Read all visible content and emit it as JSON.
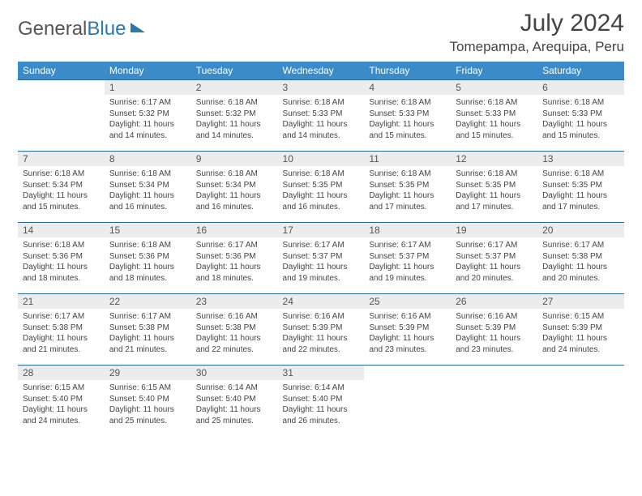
{
  "logo": {
    "text_gray": "General",
    "text_blue": "Blue"
  },
  "title": {
    "month": "July 2024",
    "location": "Tomepampa, Arequipa, Peru"
  },
  "colors": {
    "header_bg": "#3b8bc8",
    "header_text": "#ffffff",
    "row_border": "#2a6aa0",
    "daynum_bg": "#ececec",
    "text": "#444444",
    "logo_blue": "#2a7ab0"
  },
  "weekdays": [
    "Sunday",
    "Monday",
    "Tuesday",
    "Wednesday",
    "Thursday",
    "Friday",
    "Saturday"
  ],
  "weeks": [
    [
      {
        "n": "",
        "sunrise": "",
        "sunset": "",
        "daylight1": "",
        "daylight2": ""
      },
      {
        "n": "1",
        "sunrise": "Sunrise: 6:17 AM",
        "sunset": "Sunset: 5:32 PM",
        "daylight1": "Daylight: 11 hours",
        "daylight2": "and 14 minutes."
      },
      {
        "n": "2",
        "sunrise": "Sunrise: 6:18 AM",
        "sunset": "Sunset: 5:32 PM",
        "daylight1": "Daylight: 11 hours",
        "daylight2": "and 14 minutes."
      },
      {
        "n": "3",
        "sunrise": "Sunrise: 6:18 AM",
        "sunset": "Sunset: 5:33 PM",
        "daylight1": "Daylight: 11 hours",
        "daylight2": "and 14 minutes."
      },
      {
        "n": "4",
        "sunrise": "Sunrise: 6:18 AM",
        "sunset": "Sunset: 5:33 PM",
        "daylight1": "Daylight: 11 hours",
        "daylight2": "and 15 minutes."
      },
      {
        "n": "5",
        "sunrise": "Sunrise: 6:18 AM",
        "sunset": "Sunset: 5:33 PM",
        "daylight1": "Daylight: 11 hours",
        "daylight2": "and 15 minutes."
      },
      {
        "n": "6",
        "sunrise": "Sunrise: 6:18 AM",
        "sunset": "Sunset: 5:33 PM",
        "daylight1": "Daylight: 11 hours",
        "daylight2": "and 15 minutes."
      }
    ],
    [
      {
        "n": "7",
        "sunrise": "Sunrise: 6:18 AM",
        "sunset": "Sunset: 5:34 PM",
        "daylight1": "Daylight: 11 hours",
        "daylight2": "and 15 minutes."
      },
      {
        "n": "8",
        "sunrise": "Sunrise: 6:18 AM",
        "sunset": "Sunset: 5:34 PM",
        "daylight1": "Daylight: 11 hours",
        "daylight2": "and 16 minutes."
      },
      {
        "n": "9",
        "sunrise": "Sunrise: 6:18 AM",
        "sunset": "Sunset: 5:34 PM",
        "daylight1": "Daylight: 11 hours",
        "daylight2": "and 16 minutes."
      },
      {
        "n": "10",
        "sunrise": "Sunrise: 6:18 AM",
        "sunset": "Sunset: 5:35 PM",
        "daylight1": "Daylight: 11 hours",
        "daylight2": "and 16 minutes."
      },
      {
        "n": "11",
        "sunrise": "Sunrise: 6:18 AM",
        "sunset": "Sunset: 5:35 PM",
        "daylight1": "Daylight: 11 hours",
        "daylight2": "and 17 minutes."
      },
      {
        "n": "12",
        "sunrise": "Sunrise: 6:18 AM",
        "sunset": "Sunset: 5:35 PM",
        "daylight1": "Daylight: 11 hours",
        "daylight2": "and 17 minutes."
      },
      {
        "n": "13",
        "sunrise": "Sunrise: 6:18 AM",
        "sunset": "Sunset: 5:35 PM",
        "daylight1": "Daylight: 11 hours",
        "daylight2": "and 17 minutes."
      }
    ],
    [
      {
        "n": "14",
        "sunrise": "Sunrise: 6:18 AM",
        "sunset": "Sunset: 5:36 PM",
        "daylight1": "Daylight: 11 hours",
        "daylight2": "and 18 minutes."
      },
      {
        "n": "15",
        "sunrise": "Sunrise: 6:18 AM",
        "sunset": "Sunset: 5:36 PM",
        "daylight1": "Daylight: 11 hours",
        "daylight2": "and 18 minutes."
      },
      {
        "n": "16",
        "sunrise": "Sunrise: 6:17 AM",
        "sunset": "Sunset: 5:36 PM",
        "daylight1": "Daylight: 11 hours",
        "daylight2": "and 18 minutes."
      },
      {
        "n": "17",
        "sunrise": "Sunrise: 6:17 AM",
        "sunset": "Sunset: 5:37 PM",
        "daylight1": "Daylight: 11 hours",
        "daylight2": "and 19 minutes."
      },
      {
        "n": "18",
        "sunrise": "Sunrise: 6:17 AM",
        "sunset": "Sunset: 5:37 PM",
        "daylight1": "Daylight: 11 hours",
        "daylight2": "and 19 minutes."
      },
      {
        "n": "19",
        "sunrise": "Sunrise: 6:17 AM",
        "sunset": "Sunset: 5:37 PM",
        "daylight1": "Daylight: 11 hours",
        "daylight2": "and 20 minutes."
      },
      {
        "n": "20",
        "sunrise": "Sunrise: 6:17 AM",
        "sunset": "Sunset: 5:38 PM",
        "daylight1": "Daylight: 11 hours",
        "daylight2": "and 20 minutes."
      }
    ],
    [
      {
        "n": "21",
        "sunrise": "Sunrise: 6:17 AM",
        "sunset": "Sunset: 5:38 PM",
        "daylight1": "Daylight: 11 hours",
        "daylight2": "and 21 minutes."
      },
      {
        "n": "22",
        "sunrise": "Sunrise: 6:17 AM",
        "sunset": "Sunset: 5:38 PM",
        "daylight1": "Daylight: 11 hours",
        "daylight2": "and 21 minutes."
      },
      {
        "n": "23",
        "sunrise": "Sunrise: 6:16 AM",
        "sunset": "Sunset: 5:38 PM",
        "daylight1": "Daylight: 11 hours",
        "daylight2": "and 22 minutes."
      },
      {
        "n": "24",
        "sunrise": "Sunrise: 6:16 AM",
        "sunset": "Sunset: 5:39 PM",
        "daylight1": "Daylight: 11 hours",
        "daylight2": "and 22 minutes."
      },
      {
        "n": "25",
        "sunrise": "Sunrise: 6:16 AM",
        "sunset": "Sunset: 5:39 PM",
        "daylight1": "Daylight: 11 hours",
        "daylight2": "and 23 minutes."
      },
      {
        "n": "26",
        "sunrise": "Sunrise: 6:16 AM",
        "sunset": "Sunset: 5:39 PM",
        "daylight1": "Daylight: 11 hours",
        "daylight2": "and 23 minutes."
      },
      {
        "n": "27",
        "sunrise": "Sunrise: 6:15 AM",
        "sunset": "Sunset: 5:39 PM",
        "daylight1": "Daylight: 11 hours",
        "daylight2": "and 24 minutes."
      }
    ],
    [
      {
        "n": "28",
        "sunrise": "Sunrise: 6:15 AM",
        "sunset": "Sunset: 5:40 PM",
        "daylight1": "Daylight: 11 hours",
        "daylight2": "and 24 minutes."
      },
      {
        "n": "29",
        "sunrise": "Sunrise: 6:15 AM",
        "sunset": "Sunset: 5:40 PM",
        "daylight1": "Daylight: 11 hours",
        "daylight2": "and 25 minutes."
      },
      {
        "n": "30",
        "sunrise": "Sunrise: 6:14 AM",
        "sunset": "Sunset: 5:40 PM",
        "daylight1": "Daylight: 11 hours",
        "daylight2": "and 25 minutes."
      },
      {
        "n": "31",
        "sunrise": "Sunrise: 6:14 AM",
        "sunset": "Sunset: 5:40 PM",
        "daylight1": "Daylight: 11 hours",
        "daylight2": "and 26 minutes."
      },
      {
        "n": "",
        "sunrise": "",
        "sunset": "",
        "daylight1": "",
        "daylight2": ""
      },
      {
        "n": "",
        "sunrise": "",
        "sunset": "",
        "daylight1": "",
        "daylight2": ""
      },
      {
        "n": "",
        "sunrise": "",
        "sunset": "",
        "daylight1": "",
        "daylight2": ""
      }
    ]
  ]
}
